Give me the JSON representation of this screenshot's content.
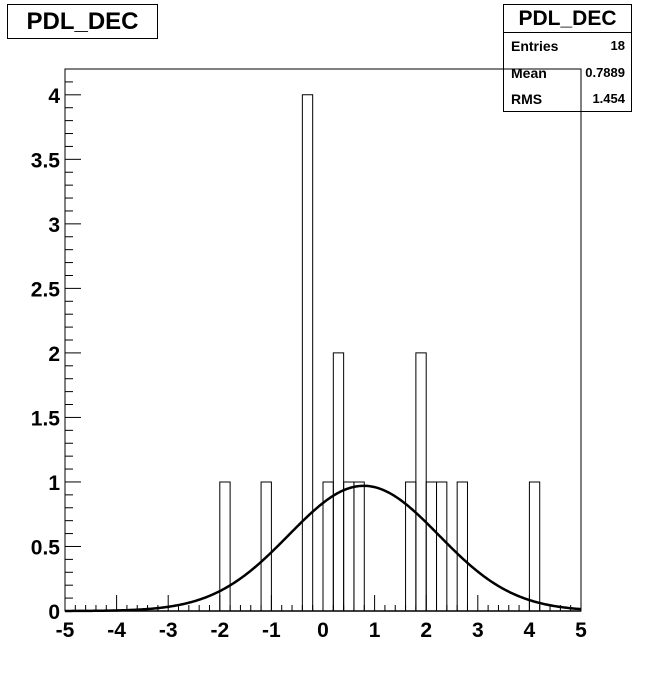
{
  "chart_data": {
    "type": "bar",
    "title": "PDL_DEC",
    "stats": {
      "title": "PDL_DEC",
      "rows": [
        {
          "label": "Entries",
          "value": "18"
        },
        {
          "label": "Mean",
          "value": "0.7889"
        },
        {
          "label": "RMS",
          "value": "1.454"
        }
      ]
    },
    "xlim": [
      -5,
      5
    ],
    "ylim": [
      0,
      4.2
    ],
    "x_ticks": [
      "-5",
      "-4",
      "-3",
      "-2",
      "-1",
      "0",
      "1",
      "2",
      "3",
      "4",
      "5"
    ],
    "y_ticks": [
      "0",
      "0.5",
      "1",
      "1.5",
      "2",
      "2.5",
      "3",
      "3.5",
      "4"
    ],
    "bin_width": 0.2,
    "bins": [
      {
        "x0": -2.0,
        "count": 1
      },
      {
        "x0": -1.2,
        "count": 1
      },
      {
        "x0": -0.4,
        "count": 4
      },
      {
        "x0": 0.0,
        "count": 1
      },
      {
        "x0": 0.2,
        "count": 2
      },
      {
        "x0": 0.4,
        "count": 1
      },
      {
        "x0": 0.6,
        "count": 1
      },
      {
        "x0": 1.6,
        "count": 1
      },
      {
        "x0": 1.8,
        "count": 2
      },
      {
        "x0": 2.0,
        "count": 1
      },
      {
        "x0": 2.2,
        "count": 1
      },
      {
        "x0": 2.6,
        "count": 1
      },
      {
        "x0": 4.0,
        "count": 1
      }
    ],
    "fit": {
      "type": "gaussian",
      "mean": 0.7889,
      "sigma": 1.454,
      "amplitude": 0.97
    }
  }
}
